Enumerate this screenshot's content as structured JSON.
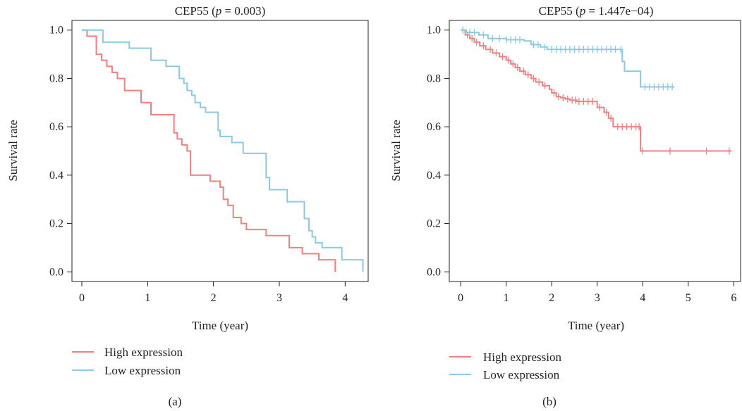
{
  "colors": {
    "high": "#F28080",
    "low": "#8DC9E3",
    "axis": "#222222"
  },
  "chart_data": [
    {
      "type": "line",
      "panel_label": "(a)",
      "title_prefix": "CEP55 (",
      "title_p": "p",
      "title_suffix": " = 0.003)",
      "xlabel": "Time (year)",
      "ylabel": "Survival rate",
      "xlim": [
        -0.15,
        4.35
      ],
      "ylim": [
        -0.04,
        1.04
      ],
      "xticks": [
        0,
        1,
        2,
        3,
        4
      ],
      "xtick_labels": [
        "0",
        "1",
        "2",
        "3",
        "4"
      ],
      "yticks": [
        0.0,
        0.2,
        0.4,
        0.6,
        0.8,
        1.0
      ],
      "ytick_labels": [
        "0.0",
        "0.2",
        "0.4",
        "0.6",
        "0.8",
        "1.0"
      ],
      "legend": [
        "High expression",
        "Low expression"
      ],
      "series": [
        {
          "name": "High expression",
          "step_x": [
            0,
            0.08,
            0.22,
            0.3,
            0.38,
            0.46,
            0.54,
            0.65,
            0.9,
            1.05,
            1.4,
            1.45,
            1.52,
            1.6,
            1.65,
            1.95,
            2.1,
            2.15,
            2.22,
            2.3,
            2.42,
            2.5,
            2.8,
            3.15,
            3.35,
            3.6,
            3.85
          ],
          "step_y": [
            1.0,
            0.975,
            0.9,
            0.875,
            0.85,
            0.825,
            0.8,
            0.75,
            0.7,
            0.65,
            0.575,
            0.55,
            0.525,
            0.5,
            0.4,
            0.375,
            0.35,
            0.3,
            0.275,
            0.225,
            0.2,
            0.175,
            0.15,
            0.1,
            0.075,
            0.05,
            0.025
          ],
          "x_end": 3.85,
          "end_drop": 0.0,
          "censor_x": []
        },
        {
          "name": "Low expression",
          "step_x": [
            0,
            0.32,
            0.72,
            1.05,
            1.28,
            1.48,
            1.55,
            1.6,
            1.67,
            1.72,
            1.8,
            1.88,
            2.07,
            2.1,
            2.28,
            2.45,
            2.8,
            2.85,
            3.12,
            3.38,
            3.45,
            3.5,
            3.55,
            3.65,
            3.95
          ],
          "step_y": [
            1.0,
            0.95,
            0.925,
            0.875,
            0.85,
            0.8,
            0.78,
            0.75,
            0.73,
            0.7,
            0.68,
            0.66,
            0.585,
            0.56,
            0.535,
            0.49,
            0.39,
            0.34,
            0.29,
            0.22,
            0.17,
            0.145,
            0.12,
            0.1,
            0.05
          ],
          "x_end": 4.27,
          "end_drop": 0.0,
          "censor_x": []
        }
      ]
    },
    {
      "type": "line",
      "panel_label": "(b)",
      "title_prefix": "CEP55 (",
      "title_p": "p",
      "title_suffix": " = 1.447e−04)",
      "xlabel": "Time (year)",
      "ylabel": "Survival rate",
      "xlim": [
        -0.25,
        6.15
      ],
      "ylim": [
        -0.04,
        1.04
      ],
      "xticks": [
        0,
        1,
        2,
        3,
        4,
        5,
        6
      ],
      "xtick_labels": [
        "0",
        "1",
        "2",
        "3",
        "4",
        "5",
        "6"
      ],
      "yticks": [
        0.0,
        0.2,
        0.4,
        0.6,
        0.8,
        1.0
      ],
      "ytick_labels": [
        "0.0",
        "0.2",
        "0.4",
        "0.6",
        "0.8",
        "1.0"
      ],
      "legend": [
        "High expression",
        "Low expression"
      ],
      "series": [
        {
          "name": "High expression",
          "step_x": [
            0,
            0.1,
            0.2,
            0.3,
            0.42,
            0.55,
            0.7,
            0.85,
            1.0,
            1.1,
            1.2,
            1.3,
            1.42,
            1.55,
            1.65,
            1.8,
            1.95,
            2.0,
            2.1,
            2.2,
            2.3,
            2.4,
            2.55,
            3.0,
            3.15,
            3.25,
            3.35,
            3.95
          ],
          "step_y": [
            1.0,
            0.98,
            0.965,
            0.95,
            0.935,
            0.92,
            0.905,
            0.89,
            0.875,
            0.86,
            0.845,
            0.83,
            0.815,
            0.8,
            0.785,
            0.77,
            0.755,
            0.74,
            0.725,
            0.72,
            0.715,
            0.71,
            0.705,
            0.68,
            0.66,
            0.635,
            0.6,
            0.5
          ],
          "x_end": 5.95,
          "end_drop": 0.0,
          "censor_x": [
            0.05,
            0.15,
            0.25,
            0.35,
            0.5,
            0.65,
            0.78,
            0.92,
            1.05,
            1.15,
            1.25,
            1.38,
            1.48,
            1.6,
            1.72,
            1.85,
            2.05,
            2.15,
            2.25,
            2.35,
            2.45,
            2.52,
            2.6,
            2.7,
            2.8,
            2.9,
            3.05,
            3.2,
            3.3,
            3.45,
            3.55,
            3.65,
            3.75,
            3.85,
            3.92,
            4.0,
            4.6,
            5.4,
            5.9
          ]
        },
        {
          "name": "Low expression",
          "step_x": [
            0,
            0.12,
            0.4,
            0.6,
            1.0,
            1.4,
            1.55,
            1.75,
            1.9,
            3.55,
            3.6,
            3.95
          ],
          "step_y": [
            1.0,
            0.99,
            0.98,
            0.965,
            0.96,
            0.955,
            0.94,
            0.93,
            0.92,
            0.87,
            0.83,
            0.765
          ],
          "x_end": 4.7,
          "end_drop": 0.0,
          "censor_x": [
            0.05,
            0.2,
            0.3,
            0.5,
            0.7,
            0.85,
            1.0,
            1.1,
            1.2,
            1.3,
            1.6,
            1.7,
            1.85,
            2.0,
            2.1,
            2.2,
            2.3,
            2.4,
            2.5,
            2.6,
            2.7,
            2.8,
            2.9,
            3.0,
            3.1,
            3.2,
            3.3,
            3.4,
            3.52,
            4.05,
            4.15,
            4.25,
            4.35,
            4.45,
            4.55,
            4.65
          ]
        }
      ]
    }
  ]
}
